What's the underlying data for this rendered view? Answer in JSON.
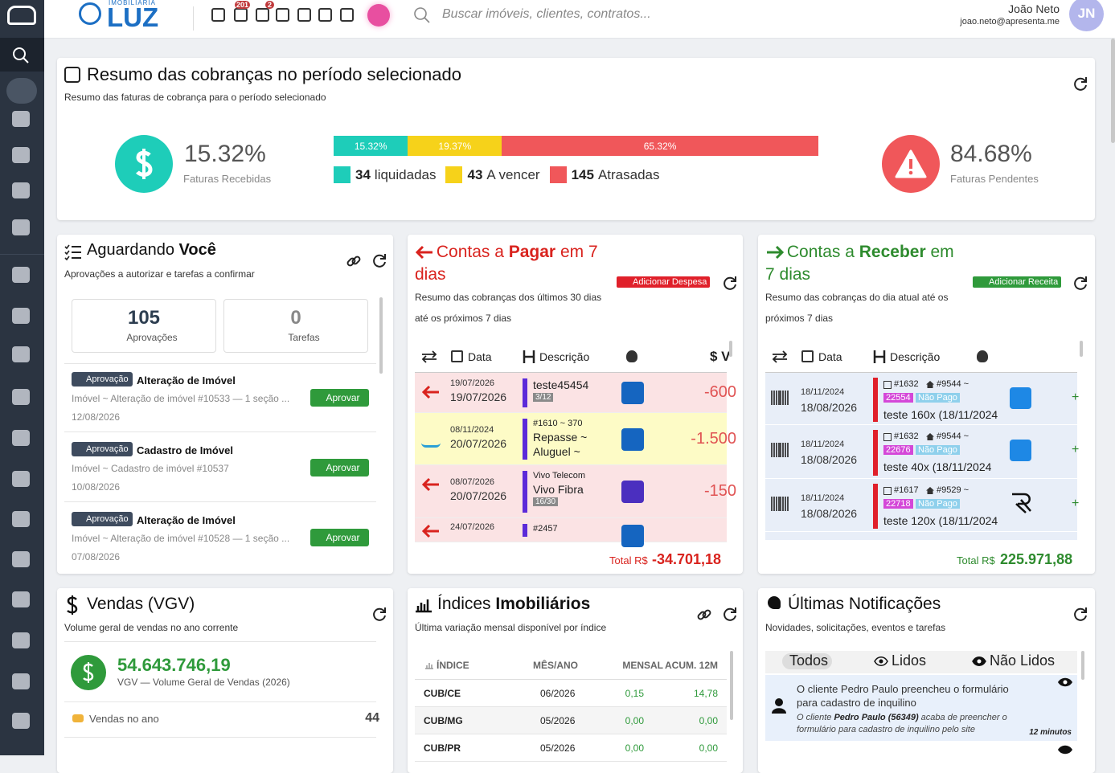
{
  "header": {
    "brand_small": "IMOBILIÁRIA",
    "brand": "LUZ",
    "badges": [
      "201",
      "2"
    ],
    "search_placeholder": "Buscar imóveis, clientes, contratos...",
    "user": {
      "name": "João Neto",
      "email": "joao.neto@apresenta.me",
      "initials": "JN"
    }
  },
  "summary": {
    "title": "Resumo das cobranças no período selecionado",
    "subtitle": "Resumo das faturas de cobrança para o período selecionado",
    "received": {
      "value": "15.32%",
      "label": "Faturas Recebidas"
    },
    "pending": {
      "value": "84.68%",
      "label": "Faturas Pendentes"
    },
    "bar": [
      {
        "value": 15.32,
        "label": "15.32%",
        "color": "#1ecdb9"
      },
      {
        "value": 19.37,
        "label": "19.37%",
        "color": "#f6d21a"
      },
      {
        "value": 65.32,
        "label": "65.32%",
        "color": "#f0575a"
      }
    ],
    "legend": [
      {
        "count": 34,
        "label": "liquidadas"
      },
      {
        "count": 43,
        "label": "A vencer"
      },
      {
        "count": 145,
        "label": "Atrasadas"
      }
    ]
  },
  "waiting": {
    "title": "Aguardando",
    "title_bold": "Você",
    "subtitle": "Aprovações a autorizar e tarefas a confirmar",
    "counters": [
      {
        "count": 105,
        "label": "Aprovações"
      },
      {
        "count": 0,
        "label": "Tarefas"
      }
    ],
    "items": [
      {
        "badge": "Aprovação",
        "title": "Alteração de Imóvel",
        "description": "Imóvel ~ Alteração de imóvel #10533 — 1 seção ...",
        "date": "12/08/2026",
        "action": "Aprovar"
      },
      {
        "badge": "Aprovação",
        "title": "Cadastro de Imóvel",
        "description": "Imóvel ~ Cadastro de imóvel #10537",
        "date": "10/08/2026",
        "action": "Aprovar"
      },
      {
        "badge": "Aprovação",
        "title": "Alteração de Imóvel",
        "description": "Imóvel ~ Alteração de imóvel #10528 — 1 seção ...",
        "date": "07/08/2026",
        "action": "Aprovar"
      }
    ]
  },
  "payables": {
    "title": [
      "Contas a ",
      "Pagar",
      " em 7 dias"
    ],
    "button": "Adicionar Despesa",
    "subtitle": "Resumo das cobranças dos últimos 30 dias até os próximos 7 dias",
    "columns": [
      "Data",
      "Descrição",
      "$ V"
    ],
    "rows": [
      {
        "date_small": "19/07/2026",
        "date": "19/07/2026",
        "lines": [
          "teste45454"
        ],
        "tag": "3/12",
        "value": "-600"
      },
      {
        "date_small": "08/11/2024",
        "date": "20/07/2026",
        "lines": [
          "#1610 ~ 370",
          "Repasse ~",
          "Aluguel ~"
        ],
        "value": "-1.500"
      },
      {
        "date_small": "08/07/2026",
        "date": "20/07/2026",
        "lines": [
          "Vivo Telecom",
          "Vivo Fibra"
        ],
        "tag": "16/30",
        "value": "-150"
      },
      {
        "date_small": "24/07/2026",
        "lines": [
          "#2457"
        ]
      }
    ],
    "total_label": "Total R$",
    "total": "-34.701,18"
  },
  "receivables": {
    "title": [
      "Contas a ",
      "Receber",
      " em 7 dias"
    ],
    "button": "Adicionar Receita",
    "subtitle": "Resumo das cobranças do dia atual até os próximos 7 dias",
    "columns": [
      "Data",
      "Descrição"
    ],
    "rows": [
      {
        "date_small": "18/11/2024",
        "date": "18/08/2026",
        "ref": "#1632",
        "property": "#9544 ~",
        "code": "22554",
        "status": "Não Pago",
        "description": "teste 160x (18/11/2024",
        "value": "+"
      },
      {
        "date_small": "18/11/2024",
        "date": "18/08/2026",
        "ref": "#1632",
        "property": "#9544 ~",
        "code": "22676",
        "status": "Não Pago",
        "description": "teste 40x (18/11/2024",
        "value": "+"
      },
      {
        "date_small": "18/11/2024",
        "date": "18/08/2026",
        "ref": "#1617",
        "property": "#9529 ~",
        "code": "22718",
        "status": "Não Pago",
        "description": "teste 120x (18/11/2024",
        "value": "+"
      }
    ],
    "total_label": "Total R$",
    "total": "225.971,88"
  },
  "sales": {
    "title": "Vendas (VGV)",
    "subtitle": "Volume geral de vendas no ano corrente",
    "value": "54.643.746,19",
    "value_label": "VGV — Volume Geral de Vendas (2026)",
    "stats": [
      {
        "label": "Vendas no ano",
        "value": 44
      }
    ]
  },
  "indices": {
    "title": "Índices",
    "title_bold": "Imobiliários",
    "subtitle": "Última variação mensal disponível por índice",
    "columns": [
      "ÍNDICE",
      "MÊS/ANO",
      "MENSAL",
      "ACUM. 12M"
    ],
    "rows": [
      [
        "CUB/CE",
        "06/2026",
        "0,15",
        "14,78"
      ],
      [
        "CUB/MG",
        "05/2026",
        "0,00",
        "0,00"
      ],
      [
        "CUB/PR",
        "05/2026",
        "0,00",
        "0,00"
      ]
    ]
  },
  "notifications": {
    "title": "Últimas Notificações",
    "subtitle": "Novidades, solicitações, eventos e tarefas",
    "tabs": [
      "Todos",
      "Lidos",
      "Não Lidos"
    ],
    "items": [
      {
        "text": "O cliente Pedro Paulo preencheu o formulário para cadastro de inquilino",
        "detail": [
          "O cliente ",
          "Pedro Paulo (56349)",
          " acaba de preencher o formulário para cadastro de inquilino pelo site"
        ],
        "time": "12 minutos"
      }
    ]
  }
}
